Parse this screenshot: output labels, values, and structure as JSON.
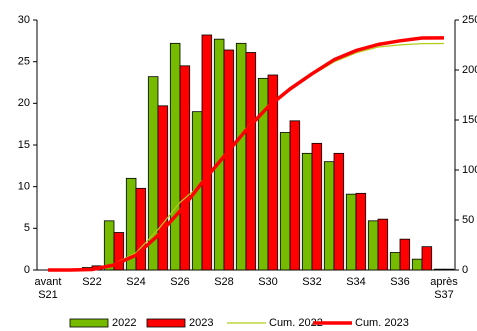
{
  "chart_data": {
    "type": "bar+line",
    "categories": [
      "avant S21",
      null,
      "S22",
      null,
      "S24",
      null,
      "S26",
      null,
      "S28",
      null,
      "S30",
      null,
      "S32",
      null,
      "S34",
      null,
      "S36",
      null,
      "après S37"
    ],
    "series": [
      {
        "name": "2022",
        "type": "bar",
        "color": "#77bb00",
        "values": [
          0,
          0,
          0.3,
          5.9,
          11.0,
          23.2,
          27.2,
          19.0,
          27.7,
          27.2,
          23.0,
          16.5,
          14.0,
          13.0,
          9.1,
          5.9,
          2.1,
          1.3,
          0.1
        ]
      },
      {
        "name": "2023",
        "type": "bar",
        "color": "#ff0000",
        "values": [
          0,
          0,
          0.5,
          4.5,
          9.8,
          19.7,
          24.5,
          28.2,
          26.4,
          26.1,
          23.4,
          17.9,
          15.2,
          14.0,
          9.2,
          6.1,
          3.7,
          2.8,
          0.1
        ]
      },
      {
        "name": "Cum. 2022",
        "type": "line",
        "axis": "y2",
        "color": "#b5cc18",
        "width": 1.2,
        "values": [
          0,
          0,
          0.3,
          6.2,
          17.2,
          40.4,
          67.6,
          86.6,
          114.3,
          141.5,
          164.5,
          181,
          195,
          208,
          217.1,
          223,
          225.1,
          226.4,
          226.5
        ]
      },
      {
        "name": "Cum. 2023",
        "type": "line",
        "axis": "y2",
        "color": "#ff0000",
        "width": 3.5,
        "values": [
          0,
          0,
          0.5,
          5,
          14.8,
          34.5,
          59,
          87.2,
          113.6,
          139.7,
          163.1,
          181,
          196.2,
          210.2,
          219.4,
          225.5,
          229.2,
          232,
          232.1
        ]
      }
    ],
    "ylim": [
      0,
      30
    ],
    "yticks": [
      0,
      5,
      10,
      15,
      20,
      25,
      30
    ],
    "y2lim": [
      0,
      250
    ],
    "y2ticks": [
      0,
      50,
      100,
      150,
      200,
      250
    ],
    "grid": false,
    "legend": "bottom"
  }
}
